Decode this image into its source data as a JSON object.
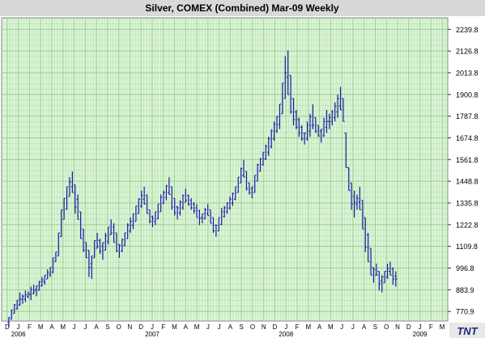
{
  "chart_data": {
    "type": "ohlc",
    "title": "Silver, COMEX (Combined) Mar-09  Weekly",
    "logo_text": "TNT",
    "colors": {
      "plot_background": "#dcf3d6",
      "grid": "#8fd48f",
      "bars": "#1a1aa8",
      "title_background": "#d8d8d8"
    },
    "grid": true,
    "ylim": [
      721.0,
      2300.0
    ],
    "y_ticks": [
      "770.9",
      "883.9",
      "996.8",
      "1109.8",
      "1222.8",
      "1335.8",
      "1448.8",
      "1561.8",
      "1674.8",
      "1787.8",
      "1900.8",
      "2013.8",
      "2126.8",
      "2239.8"
    ],
    "x_tick_letters": [
      "D",
      "J",
      "F",
      "M",
      "A",
      "M",
      "J",
      "J",
      "A",
      "S",
      "O",
      "N",
      "D",
      "J",
      "F",
      "M",
      "A",
      "M",
      "J",
      "J",
      "A",
      "S",
      "O",
      "N",
      "D",
      "J",
      "F",
      "M",
      "A",
      "M",
      "J",
      "J",
      "A",
      "S",
      "O",
      "N",
      "D",
      "J",
      "F",
      "M"
    ],
    "x_year_labels": [
      {
        "label": "2006",
        "month_index": 1
      },
      {
        "label": "2007",
        "month_index": 13
      },
      {
        "label": "2008",
        "month_index": 25
      },
      {
        "label": "2009",
        "month_index": 37
      }
    ],
    "weeks": [
      [
        740,
        690
      ],
      [
        780,
        730
      ],
      [
        810,
        760
      ],
      [
        830,
        780
      ],
      [
        870,
        800
      ],
      [
        860,
        810
      ],
      [
        880,
        820
      ],
      [
        875,
        840
      ],
      [
        900,
        830
      ],
      [
        910,
        860
      ],
      [
        905,
        850
      ],
      [
        930,
        880
      ],
      [
        950,
        900
      ],
      [
        960,
        910
      ],
      [
        990,
        940
      ],
      [
        1000,
        950
      ],
      [
        1050,
        970
      ],
      [
        1080,
        1030
      ],
      [
        1180,
        1060
      ],
      [
        1300,
        1160
      ],
      [
        1360,
        1250
      ],
      [
        1420,
        1300
      ],
      [
        1470,
        1370
      ],
      [
        1500,
        1390
      ],
      [
        1430,
        1280
      ],
      [
        1380,
        1250
      ],
      [
        1290,
        1150
      ],
      [
        1200,
        1080
      ],
      [
        1130,
        1050
      ],
      [
        1090,
        950
      ],
      [
        1060,
        940
      ],
      [
        1140,
        1050
      ],
      [
        1180,
        1100
      ],
      [
        1150,
        1070
      ],
      [
        1130,
        1040
      ],
      [
        1180,
        1090
      ],
      [
        1210,
        1120
      ],
      [
        1250,
        1170
      ],
      [
        1230,
        1130
      ],
      [
        1180,
        1080
      ],
      [
        1120,
        1050
      ],
      [
        1150,
        1080
      ],
      [
        1180,
        1110
      ],
      [
        1230,
        1150
      ],
      [
        1260,
        1180
      ],
      [
        1280,
        1200
      ],
      [
        1320,
        1240
      ],
      [
        1360,
        1280
      ],
      [
        1400,
        1310
      ],
      [
        1420,
        1330
      ],
      [
        1380,
        1280
      ],
      [
        1300,
        1230
      ],
      [
        1270,
        1210
      ],
      [
        1290,
        1220
      ],
      [
        1330,
        1250
      ],
      [
        1380,
        1290
      ],
      [
        1400,
        1330
      ],
      [
        1430,
        1350
      ],
      [
        1470,
        1380
      ],
      [
        1420,
        1300
      ],
      [
        1360,
        1270
      ],
      [
        1320,
        1250
      ],
      [
        1350,
        1270
      ],
      [
        1380,
        1300
      ],
      [
        1410,
        1340
      ],
      [
        1380,
        1320
      ],
      [
        1360,
        1300
      ],
      [
        1340,
        1280
      ],
      [
        1330,
        1260
      ],
      [
        1300,
        1220
      ],
      [
        1280,
        1230
      ],
      [
        1310,
        1250
      ],
      [
        1330,
        1270
      ],
      [
        1300,
        1230
      ],
      [
        1260,
        1180
      ],
      [
        1220,
        1160
      ],
      [
        1260,
        1190
      ],
      [
        1310,
        1220
      ],
      [
        1320,
        1260
      ],
      [
        1340,
        1280
      ],
      [
        1370,
        1300
      ],
      [
        1390,
        1320
      ],
      [
        1420,
        1350
      ],
      [
        1470,
        1390
      ],
      [
        1520,
        1440
      ],
      [
        1560,
        1470
      ],
      [
        1500,
        1400
      ],
      [
        1440,
        1380
      ],
      [
        1420,
        1360
      ],
      [
        1480,
        1390
      ],
      [
        1540,
        1450
      ],
      [
        1570,
        1500
      ],
      [
        1600,
        1530
      ],
      [
        1640,
        1560
      ],
      [
        1680,
        1580
      ],
      [
        1720,
        1620
      ],
      [
        1760,
        1660
      ],
      [
        1790,
        1700
      ],
      [
        1850,
        1720
      ],
      [
        1960,
        1800
      ],
      [
        2100,
        1880
      ],
      [
        2130,
        1900
      ],
      [
        2000,
        1800
      ],
      [
        1880,
        1740
      ],
      [
        1820,
        1720
      ],
      [
        1780,
        1680
      ],
      [
        1740,
        1660
      ],
      [
        1700,
        1640
      ],
      [
        1760,
        1660
      ],
      [
        1800,
        1680
      ],
      [
        1850,
        1720
      ],
      [
        1780,
        1700
      ],
      [
        1740,
        1680
      ],
      [
        1720,
        1650
      ],
      [
        1780,
        1680
      ],
      [
        1820,
        1700
      ],
      [
        1800,
        1720
      ],
      [
        1820,
        1740
      ],
      [
        1860,
        1760
      ],
      [
        1900,
        1780
      ],
      [
        1940,
        1820
      ],
      [
        1880,
        1760
      ],
      [
        1700,
        1520
      ],
      [
        1520,
        1400
      ],
      [
        1440,
        1300
      ],
      [
        1400,
        1260
      ],
      [
        1380,
        1300
      ],
      [
        1420,
        1300
      ],
      [
        1350,
        1200
      ],
      [
        1260,
        1080
      ],
      [
        1180,
        1030
      ],
      [
        1100,
        960
      ],
      [
        1000,
        920
      ],
      [
        1020,
        960
      ],
      [
        980,
        880
      ],
      [
        960,
        870
      ],
      [
        980,
        920
      ],
      [
        1020,
        940
      ],
      [
        1030,
        960
      ],
      [
        1000,
        910
      ],
      [
        980,
        900
      ]
    ]
  }
}
